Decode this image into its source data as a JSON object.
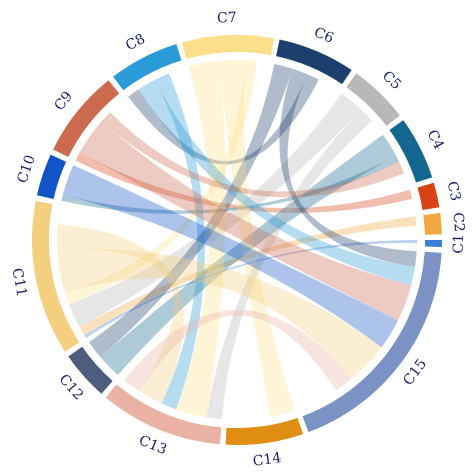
{
  "chart_data": {
    "type": "chord",
    "nodes": [
      {
        "name": "C1",
        "color": "#3a7fd5",
        "value": 2
      },
      {
        "name": "C2",
        "color": "#f0a840",
        "value": 6
      },
      {
        "name": "C3",
        "color": "#d84315",
        "value": 7
      },
      {
        "name": "C4",
        "color": "#13668e",
        "value": 18
      },
      {
        "name": "C5",
        "color": "#b8b8b8",
        "value": 17
      },
      {
        "name": "C6",
        "color": "#1c3f6e",
        "value": 22
      },
      {
        "name": "C7",
        "color": "#fddf8a",
        "value": 26
      },
      {
        "name": "C8",
        "color": "#2b9ad8",
        "value": 20
      },
      {
        "name": "C9",
        "color": "#cc6a4f",
        "value": 25
      },
      {
        "name": "C10",
        "color": "#1154c8",
        "value": 12
      },
      {
        "name": "C11",
        "color": "#f3cf7f",
        "value": 44
      },
      {
        "name": "C12",
        "color": "#4c5d7e",
        "value": 14
      },
      {
        "name": "C13",
        "color": "#eab2a3",
        "value": 35
      },
      {
        "name": "C14",
        "color": "#e08d14",
        "value": 22
      },
      {
        "name": "C15",
        "color": "#7b93c4",
        "value": 66
      }
    ],
    "links": [
      {
        "source": 0,
        "target": 10,
        "value": 1
      },
      {
        "source": 1,
        "target": 10,
        "value": 3
      },
      {
        "source": 2,
        "target": 8,
        "value": 3
      },
      {
        "source": 3,
        "target": 11,
        "value": 8
      },
      {
        "source": 3,
        "target": 9,
        "value": 2
      },
      {
        "source": 4,
        "target": 10,
        "value": 8
      },
      {
        "source": 4,
        "target": 12,
        "value": 5
      },
      {
        "source": 5,
        "target": 11,
        "value": 6
      },
      {
        "source": 5,
        "target": 14,
        "value": 5
      },
      {
        "source": 5,
        "target": 7,
        "value": 4
      },
      {
        "source": 6,
        "target": 12,
        "value": 10
      },
      {
        "source": 6,
        "target": 13,
        "value": 8
      },
      {
        "source": 6,
        "target": 10,
        "value": 4
      },
      {
        "source": 7,
        "target": 14,
        "value": 6
      },
      {
        "source": 7,
        "target": 12,
        "value": 5
      },
      {
        "source": 8,
        "target": 14,
        "value": 12
      },
      {
        "source": 8,
        "target": 3,
        "value": 4
      },
      {
        "source": 9,
        "target": 14,
        "value": 10
      },
      {
        "source": 10,
        "target": 14,
        "value": 14
      },
      {
        "source": 10,
        "target": 12,
        "value": 8
      },
      {
        "source": 12,
        "target": 14,
        "value": 6
      }
    ]
  }
}
